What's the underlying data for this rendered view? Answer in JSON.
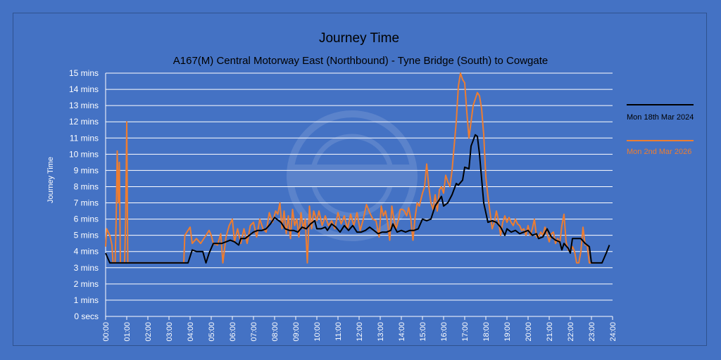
{
  "chart_data": {
    "type": "line",
    "title": "Journey Time",
    "subtitle": "A167(M) Central Motorway East (Northbound) - Tyne Bridge (South) to Cowgate",
    "ylabel": "Journey Time",
    "xlabel": "",
    "ylim": [
      0,
      15
    ],
    "y_ticks": [
      "0 secs",
      "1 mins",
      "2 mins",
      "3 mins",
      "4 mins",
      "5 mins",
      "6 mins",
      "7 mins",
      "8 mins",
      "9 mins",
      "10 mins",
      "11 mins",
      "12 mins",
      "13 mins",
      "14 mins",
      "15 mins"
    ],
    "x_ticks": [
      "00:00",
      "01:00",
      "02:00",
      "03:00",
      "04:00",
      "05:00",
      "06:00",
      "07:00",
      "08:00",
      "09:00",
      "10:00",
      "11:00",
      "12:00",
      "13:00",
      "14:00",
      "15:00",
      "16:00",
      "17:00",
      "18:00",
      "19:00",
      "20:00",
      "21:00",
      "22:00",
      "23:00",
      "24:00"
    ],
    "xlim_hours": [
      0,
      24
    ],
    "grid": "horizontal",
    "legend_position": "right",
    "series": [
      {
        "name": "Mon 18th Mar 2024",
        "color": "#000000",
        "points": [
          [
            0.0,
            3.9
          ],
          [
            0.2,
            3.3
          ],
          [
            0.5,
            3.3
          ],
          [
            1.0,
            3.3
          ],
          [
            2.0,
            3.3
          ],
          [
            3.0,
            3.3
          ],
          [
            3.6,
            3.3
          ],
          [
            3.9,
            3.3
          ],
          [
            4.1,
            4.1
          ],
          [
            4.3,
            4.0
          ],
          [
            4.6,
            4.0
          ],
          [
            4.75,
            3.3
          ],
          [
            4.9,
            3.9
          ],
          [
            5.1,
            4.5
          ],
          [
            5.3,
            4.5
          ],
          [
            5.5,
            4.5
          ],
          [
            5.7,
            4.6
          ],
          [
            5.9,
            4.7
          ],
          [
            6.1,
            4.6
          ],
          [
            6.3,
            4.4
          ],
          [
            6.4,
            4.8
          ],
          [
            6.6,
            4.8
          ],
          [
            6.8,
            5.0
          ],
          [
            7.0,
            5.2
          ],
          [
            7.2,
            5.3
          ],
          [
            7.4,
            5.3
          ],
          [
            7.6,
            5.4
          ],
          [
            7.8,
            5.7
          ],
          [
            8.0,
            6.1
          ],
          [
            8.2,
            5.9
          ],
          [
            8.3,
            5.8
          ],
          [
            8.5,
            5.4
          ],
          [
            8.7,
            5.3
          ],
          [
            8.9,
            5.3
          ],
          [
            9.1,
            5.2
          ],
          [
            9.3,
            5.5
          ],
          [
            9.5,
            5.4
          ],
          [
            9.7,
            5.7
          ],
          [
            9.9,
            5.9
          ],
          [
            10.0,
            5.4
          ],
          [
            10.2,
            5.4
          ],
          [
            10.4,
            5.5
          ],
          [
            10.5,
            5.3
          ],
          [
            10.7,
            5.7
          ],
          [
            10.9,
            5.5
          ],
          [
            11.1,
            5.2
          ],
          [
            11.3,
            5.6
          ],
          [
            11.5,
            5.3
          ],
          [
            11.7,
            5.6
          ],
          [
            11.9,
            5.2
          ],
          [
            12.1,
            5.2
          ],
          [
            12.3,
            5.3
          ],
          [
            12.5,
            5.5
          ],
          [
            12.7,
            5.3
          ],
          [
            12.9,
            5.1
          ],
          [
            13.1,
            5.2
          ],
          [
            13.3,
            5.2
          ],
          [
            13.5,
            5.3
          ],
          [
            13.6,
            5.7
          ],
          [
            13.8,
            5.2
          ],
          [
            14.0,
            5.3
          ],
          [
            14.2,
            5.2
          ],
          [
            14.4,
            5.3
          ],
          [
            14.6,
            5.3
          ],
          [
            14.8,
            5.4
          ],
          [
            15.0,
            6.0
          ],
          [
            15.2,
            5.9
          ],
          [
            15.4,
            6.0
          ],
          [
            15.6,
            6.8
          ],
          [
            15.8,
            7.2
          ],
          [
            15.9,
            7.4
          ],
          [
            16.0,
            6.8
          ],
          [
            16.2,
            7.0
          ],
          [
            16.4,
            7.5
          ],
          [
            16.6,
            8.2
          ],
          [
            16.7,
            8.1
          ],
          [
            16.9,
            8.4
          ],
          [
            17.0,
            9.2
          ],
          [
            17.2,
            9.1
          ],
          [
            17.3,
            10.5
          ],
          [
            17.5,
            11.2
          ],
          [
            17.6,
            11.1
          ],
          [
            17.7,
            10.0
          ],
          [
            17.8,
            8.5
          ],
          [
            17.9,
            7.0
          ],
          [
            18.1,
            5.8
          ],
          [
            18.3,
            5.9
          ],
          [
            18.5,
            5.8
          ],
          [
            18.7,
            5.5
          ],
          [
            18.9,
            5.0
          ],
          [
            19.0,
            5.4
          ],
          [
            19.2,
            5.2
          ],
          [
            19.4,
            5.3
          ],
          [
            19.6,
            5.1
          ],
          [
            19.8,
            5.2
          ],
          [
            20.0,
            5.3
          ],
          [
            20.2,
            5.0
          ],
          [
            20.4,
            5.1
          ],
          [
            20.5,
            4.8
          ],
          [
            20.7,
            4.9
          ],
          [
            20.9,
            5.4
          ],
          [
            21.1,
            4.9
          ],
          [
            21.3,
            4.7
          ],
          [
            21.5,
            4.6
          ],
          [
            21.6,
            4.1
          ],
          [
            21.7,
            4.5
          ],
          [
            21.9,
            4.2
          ],
          [
            22.0,
            3.9
          ],
          [
            22.1,
            4.8
          ],
          [
            22.3,
            4.8
          ],
          [
            22.5,
            4.8
          ],
          [
            22.7,
            4.5
          ],
          [
            22.9,
            4.3
          ],
          [
            23.0,
            3.3
          ],
          [
            23.3,
            3.3
          ],
          [
            23.5,
            3.3
          ],
          [
            23.7,
            3.9
          ],
          [
            23.85,
            4.4
          ]
        ]
      },
      {
        "name": "Mon 2nd Mar 2026",
        "color": "#ed7d31",
        "points": [
          [
            0.0,
            4.3
          ],
          [
            0.05,
            5.4
          ],
          [
            0.2,
            5.0
          ],
          [
            0.3,
            4.4
          ],
          [
            0.35,
            3.3
          ],
          [
            0.45,
            3.3
          ],
          [
            0.5,
            6.0
          ],
          [
            0.55,
            10.2
          ],
          [
            0.6,
            7.0
          ],
          [
            0.65,
            9.5
          ],
          [
            0.7,
            3.3
          ],
          [
            0.8,
            3.3
          ],
          [
            0.9,
            3.3
          ],
          [
            0.95,
            6.0
          ],
          [
            1.0,
            12.0
          ],
          [
            1.05,
            3.3
          ],
          [
            1.2,
            3.3
          ],
          [
            2.0,
            3.3
          ],
          [
            3.0,
            3.3
          ],
          [
            3.7,
            3.3
          ],
          [
            3.75,
            5.0
          ],
          [
            3.9,
            5.3
          ],
          [
            4.0,
            5.5
          ],
          [
            4.1,
            4.5
          ],
          [
            4.3,
            4.8
          ],
          [
            4.5,
            4.5
          ],
          [
            4.7,
            4.9
          ],
          [
            4.9,
            5.3
          ],
          [
            5.0,
            5.0
          ],
          [
            5.1,
            4.5
          ],
          [
            5.3,
            4.4
          ],
          [
            5.45,
            5.1
          ],
          [
            5.55,
            3.3
          ],
          [
            5.7,
            4.9
          ],
          [
            5.85,
            5.6
          ],
          [
            6.0,
            6.0
          ],
          [
            6.1,
            4.6
          ],
          [
            6.25,
            5.4
          ],
          [
            6.4,
            4.5
          ],
          [
            6.55,
            5.4
          ],
          [
            6.7,
            4.5
          ],
          [
            6.85,
            5.6
          ],
          [
            7.0,
            5.8
          ],
          [
            7.15,
            4.9
          ],
          [
            7.3,
            6.0
          ],
          [
            7.45,
            5.4
          ],
          [
            7.6,
            5.2
          ],
          [
            7.75,
            6.4
          ],
          [
            7.9,
            5.8
          ],
          [
            8.05,
            6.5
          ],
          [
            8.15,
            6.3
          ],
          [
            8.25,
            7.0
          ],
          [
            8.35,
            5.4
          ],
          [
            8.45,
            6.5
          ],
          [
            8.55,
            5.1
          ],
          [
            8.65,
            6.2
          ],
          [
            8.75,
            4.8
          ],
          [
            8.85,
            6.6
          ],
          [
            8.95,
            5.6
          ],
          [
            9.05,
            6.0
          ],
          [
            9.15,
            4.9
          ],
          [
            9.25,
            6.4
          ],
          [
            9.35,
            5.4
          ],
          [
            9.45,
            6.0
          ],
          [
            9.55,
            3.3
          ],
          [
            9.65,
            6.8
          ],
          [
            9.75,
            5.4
          ],
          [
            9.85,
            6.5
          ],
          [
            10.0,
            5.9
          ],
          [
            10.1,
            6.5
          ],
          [
            10.25,
            5.6
          ],
          [
            10.4,
            6.2
          ],
          [
            10.55,
            5.6
          ],
          [
            10.7,
            5.9
          ],
          [
            10.85,
            5.4
          ],
          [
            11.0,
            6.4
          ],
          [
            11.15,
            5.7
          ],
          [
            11.3,
            6.2
          ],
          [
            11.45,
            5.4
          ],
          [
            11.6,
            6.3
          ],
          [
            11.75,
            5.6
          ],
          [
            11.9,
            6.4
          ],
          [
            12.05,
            5.3
          ],
          [
            12.2,
            6.0
          ],
          [
            12.35,
            6.9
          ],
          [
            12.5,
            6.4
          ],
          [
            12.65,
            6.0
          ],
          [
            12.8,
            5.9
          ],
          [
            12.95,
            4.9
          ],
          [
            13.05,
            6.8
          ],
          [
            13.15,
            6.2
          ],
          [
            13.25,
            6.5
          ],
          [
            13.35,
            5.8
          ],
          [
            13.45,
            4.7
          ],
          [
            13.55,
            6.8
          ],
          [
            13.65,
            6.0
          ],
          [
            13.75,
            5.4
          ],
          [
            13.85,
            5.9
          ],
          [
            13.95,
            6.6
          ],
          [
            14.05,
            6.6
          ],
          [
            14.15,
            6.5
          ],
          [
            14.25,
            6.2
          ],
          [
            14.35,
            6.7
          ],
          [
            14.45,
            6.0
          ],
          [
            14.55,
            4.7
          ],
          [
            14.65,
            6.1
          ],
          [
            14.75,
            7.0
          ],
          [
            14.85,
            6.8
          ],
          [
            15.0,
            7.6
          ],
          [
            15.1,
            8.0
          ],
          [
            15.2,
            9.4
          ],
          [
            15.3,
            8.0
          ],
          [
            15.4,
            7.0
          ],
          [
            15.5,
            6.6
          ],
          [
            15.6,
            7.5
          ],
          [
            15.7,
            6.5
          ],
          [
            15.8,
            7.8
          ],
          [
            15.9,
            8.0
          ],
          [
            16.0,
            7.6
          ],
          [
            16.1,
            8.7
          ],
          [
            16.2,
            8.3
          ],
          [
            16.3,
            8.0
          ],
          [
            16.4,
            9.0
          ],
          [
            16.5,
            10.5
          ],
          [
            16.6,
            12.0
          ],
          [
            16.7,
            14.2
          ],
          [
            16.8,
            15.0
          ],
          [
            16.9,
            14.6
          ],
          [
            17.0,
            14.4
          ],
          [
            17.1,
            12.6
          ],
          [
            17.2,
            11.0
          ],
          [
            17.3,
            12.0
          ],
          [
            17.4,
            13.0
          ],
          [
            17.5,
            13.4
          ],
          [
            17.6,
            13.8
          ],
          [
            17.7,
            13.6
          ],
          [
            17.8,
            12.8
          ],
          [
            17.9,
            11.2
          ],
          [
            18.0,
            8.6
          ],
          [
            18.1,
            7.4
          ],
          [
            18.2,
            6.4
          ],
          [
            18.3,
            5.4
          ],
          [
            18.4,
            5.8
          ],
          [
            18.5,
            6.5
          ],
          [
            18.6,
            5.9
          ],
          [
            18.7,
            5.0
          ],
          [
            18.8,
            5.8
          ],
          [
            18.9,
            6.2
          ],
          [
            19.0,
            5.8
          ],
          [
            19.1,
            6.1
          ],
          [
            19.2,
            5.8
          ],
          [
            19.3,
            5.6
          ],
          [
            19.4,
            6.0
          ],
          [
            19.5,
            5.7
          ],
          [
            19.6,
            5.6
          ],
          [
            19.7,
            5.3
          ],
          [
            19.8,
            5.4
          ],
          [
            19.9,
            5.0
          ],
          [
            20.0,
            5.6
          ],
          [
            20.1,
            5.0
          ],
          [
            20.2,
            5.4
          ],
          [
            20.3,
            6.0
          ],
          [
            20.4,
            4.9
          ],
          [
            20.5,
            4.9
          ],
          [
            20.6,
            5.2
          ],
          [
            20.7,
            5.0
          ],
          [
            20.8,
            5.5
          ],
          [
            20.9,
            5.1
          ],
          [
            21.0,
            4.6
          ],
          [
            21.1,
            5.1
          ],
          [
            21.2,
            5.2
          ],
          [
            21.3,
            4.5
          ],
          [
            21.4,
            4.8
          ],
          [
            21.5,
            4.5
          ],
          [
            21.6,
            5.6
          ],
          [
            21.7,
            6.3
          ],
          [
            21.8,
            4.6
          ],
          [
            21.9,
            4.1
          ],
          [
            22.0,
            4.0
          ],
          [
            22.1,
            4.3
          ],
          [
            22.2,
            4.0
          ],
          [
            22.3,
            3.3
          ],
          [
            22.4,
            3.3
          ],
          [
            22.5,
            4.0
          ],
          [
            22.6,
            5.5
          ],
          [
            22.7,
            4.4
          ],
          [
            22.8,
            4.4
          ],
          [
            22.9,
            3.3
          ],
          [
            23.0,
            3.3
          ],
          [
            23.2,
            3.3
          ]
        ]
      }
    ]
  }
}
